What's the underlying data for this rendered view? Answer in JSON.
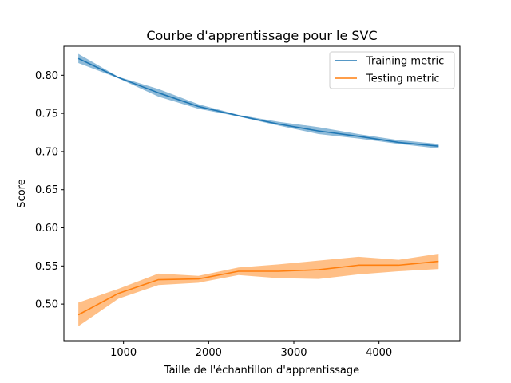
{
  "chart_data": {
    "type": "line",
    "title": "Courbe d'apprentissage pour le SVC",
    "xlabel": "Taille de l'échantillon d'apprentissage",
    "ylabel": "Score",
    "xlim": [
      300,
      4950
    ],
    "ylim": [
      0.452,
      0.838
    ],
    "xticks": [
      1000,
      2000,
      3000,
      4000
    ],
    "yticks": [
      0.5,
      0.55,
      0.6,
      0.65,
      0.7,
      0.75,
      0.8
    ],
    "grid": false,
    "legend_position": "top-right",
    "x": [
      470,
      940,
      1410,
      1880,
      2350,
      2820,
      3290,
      3760,
      4230,
      4700
    ],
    "series": [
      {
        "name": "Training metric",
        "color": "#1f77b4",
        "values": [
          0.822,
          0.797,
          0.777,
          0.759,
          0.747,
          0.736,
          0.727,
          0.72,
          0.712,
          0.707
        ],
        "lower": [
          0.816,
          0.796,
          0.772,
          0.756,
          0.746,
          0.734,
          0.723,
          0.717,
          0.71,
          0.704
        ],
        "upper": [
          0.828,
          0.798,
          0.782,
          0.762,
          0.748,
          0.739,
          0.732,
          0.723,
          0.715,
          0.71
        ]
      },
      {
        "name": "Testing metric",
        "color": "#ff7f0e",
        "values": [
          0.486,
          0.514,
          0.532,
          0.533,
          0.543,
          0.543,
          0.545,
          0.551,
          0.551,
          0.556
        ],
        "lower": [
          0.471,
          0.507,
          0.525,
          0.528,
          0.538,
          0.534,
          0.533,
          0.539,
          0.543,
          0.546
        ],
        "upper": [
          0.502,
          0.52,
          0.54,
          0.537,
          0.548,
          0.552,
          0.557,
          0.562,
          0.558,
          0.566
        ]
      }
    ]
  }
}
